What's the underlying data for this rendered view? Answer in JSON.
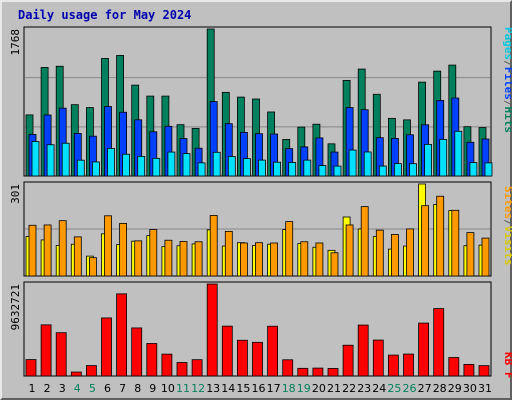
{
  "title": "Daily usage for May 2024",
  "colors": {
    "hits": "#00805C",
    "files": "#0040FF",
    "pages": "#00E0FF",
    "visits": "#FFFF00",
    "sites": "#FF9900",
    "kbytes": "#FF0000",
    "weekend": "#00805C",
    "separator": "#888888"
  },
  "right_labels": {
    "top": [
      {
        "text": "Pages",
        "color": "#00C8DC"
      },
      {
        "text": "/",
        "color": "#606060"
      },
      {
        "text": "Files",
        "color": "#0040FF"
      },
      {
        "text": "/",
        "color": "#606060"
      },
      {
        "text": "Hits",
        "color": "#00805C"
      }
    ],
    "middle": [
      {
        "text": "Sites",
        "color": "#FF9900"
      },
      {
        "text": "/",
        "color": "#606060"
      },
      {
        "text": "Visits",
        "color": "#D8C800"
      }
    ],
    "bottom": [
      {
        "text": "KB F",
        "color": "#FF0000"
      }
    ]
  },
  "chart_data": [
    {
      "type": "bar",
      "panel": "top",
      "ymax_label": "1768",
      "ylim": [
        0,
        1768
      ],
      "categories": [
        "1",
        "2",
        "3",
        "4",
        "5",
        "6",
        "7",
        "8",
        "9",
        "10",
        "11",
        "12",
        "13",
        "14",
        "15",
        "16",
        "17",
        "18",
        "19",
        "20",
        "21",
        "22",
        "23",
        "24",
        "25",
        "26",
        "27",
        "28",
        "29",
        "30",
        "31"
      ],
      "weekend_days": [
        "4",
        "5",
        "11",
        "12",
        "18",
        "19",
        "25",
        "26"
      ],
      "series": [
        {
          "name": "Hits",
          "values": [
            735,
            1306,
            1320,
            858,
            823,
            1414,
            1450,
            1093,
            961,
            961,
            617,
            573,
            1768,
            1006,
            949,
            926,
            770,
            440,
            588,
            623,
            387,
            1150,
            1286,
            983,
            693,
            675,
            1129,
            1261,
            1334,
            593,
            582
          ]
        },
        {
          "name": "Files",
          "values": [
            500,
            734,
            816,
            512,
            479,
            836,
            767,
            676,
            532,
            598,
            450,
            334,
            895,
            629,
            525,
            509,
            505,
            329,
            350,
            458,
            288,
            823,
            797,
            461,
            452,
            496,
            616,
            909,
            938,
            406,
            445
          ]
        },
        {
          "name": "Pages",
          "values": [
            415,
            376,
            394,
            190,
            169,
            332,
            262,
            236,
            212,
            288,
            270,
            158,
            285,
            235,
            209,
            191,
            166,
            163,
            191,
            126,
            119,
            312,
            289,
            120,
            149,
            148,
            380,
            440,
            538,
            161,
            158
          ]
        }
      ]
    },
    {
      "type": "bar",
      "panel": "middle",
      "ymax_label": "301",
      "ylim": [
        0,
        301
      ],
      "categories": [
        "1",
        "2",
        "3",
        "4",
        "5",
        "6",
        "7",
        "8",
        "9",
        "10",
        "11",
        "12",
        "13",
        "14",
        "15",
        "16",
        "17",
        "18",
        "19",
        "20",
        "21",
        "22",
        "23",
        "24",
        "25",
        "26",
        "27",
        "28",
        "29",
        "30",
        "31"
      ],
      "series": [
        {
          "name": "Visits",
          "values": [
            129,
            118,
            100,
            104,
            65,
            138,
            103,
            114,
            132,
            96,
            99,
            105,
            151,
            98,
            109,
            100,
            104,
            152,
            106,
            94,
            84,
            193,
            154,
            129,
            88,
            98,
            301,
            234,
            214,
            99,
            101
          ]
        },
        {
          "name": "Sites",
          "values": [
            166,
            167,
            181,
            128,
            60,
            197,
            172,
            115,
            152,
            117,
            113,
            112,
            198,
            146,
            108,
            109,
            108,
            178,
            112,
            108,
            76,
            167,
            227,
            150,
            136,
            154,
            230,
            261,
            215,
            142,
            124
          ]
        }
      ]
    },
    {
      "type": "bar",
      "panel": "bottom",
      "ymax_label": "9632721",
      "ylim": [
        0,
        9632721
      ],
      "categories": [
        "1",
        "2",
        "3",
        "4",
        "5",
        "6",
        "7",
        "8",
        "9",
        "10",
        "11",
        "12",
        "13",
        "14",
        "15",
        "16",
        "17",
        "18",
        "19",
        "20",
        "21",
        "22",
        "23",
        "24",
        "25",
        "26",
        "27",
        "28",
        "29",
        "30",
        "31"
      ],
      "series": [
        {
          "name": "KB F",
          "values": [
            1721000,
            5357000,
            4533000,
            415000,
            1091000,
            6079000,
            8600000,
            5032000,
            3403000,
            2290000,
            1412000,
            1708000,
            9632721,
            5221000,
            3744000,
            3527000,
            5211000,
            1698000,
            803000,
            828000,
            790000,
            3224000,
            5334000,
            3762000,
            2190000,
            2297000,
            5541000,
            7060000,
            1936000,
            1214000,
            1084000
          ]
        }
      ]
    }
  ]
}
